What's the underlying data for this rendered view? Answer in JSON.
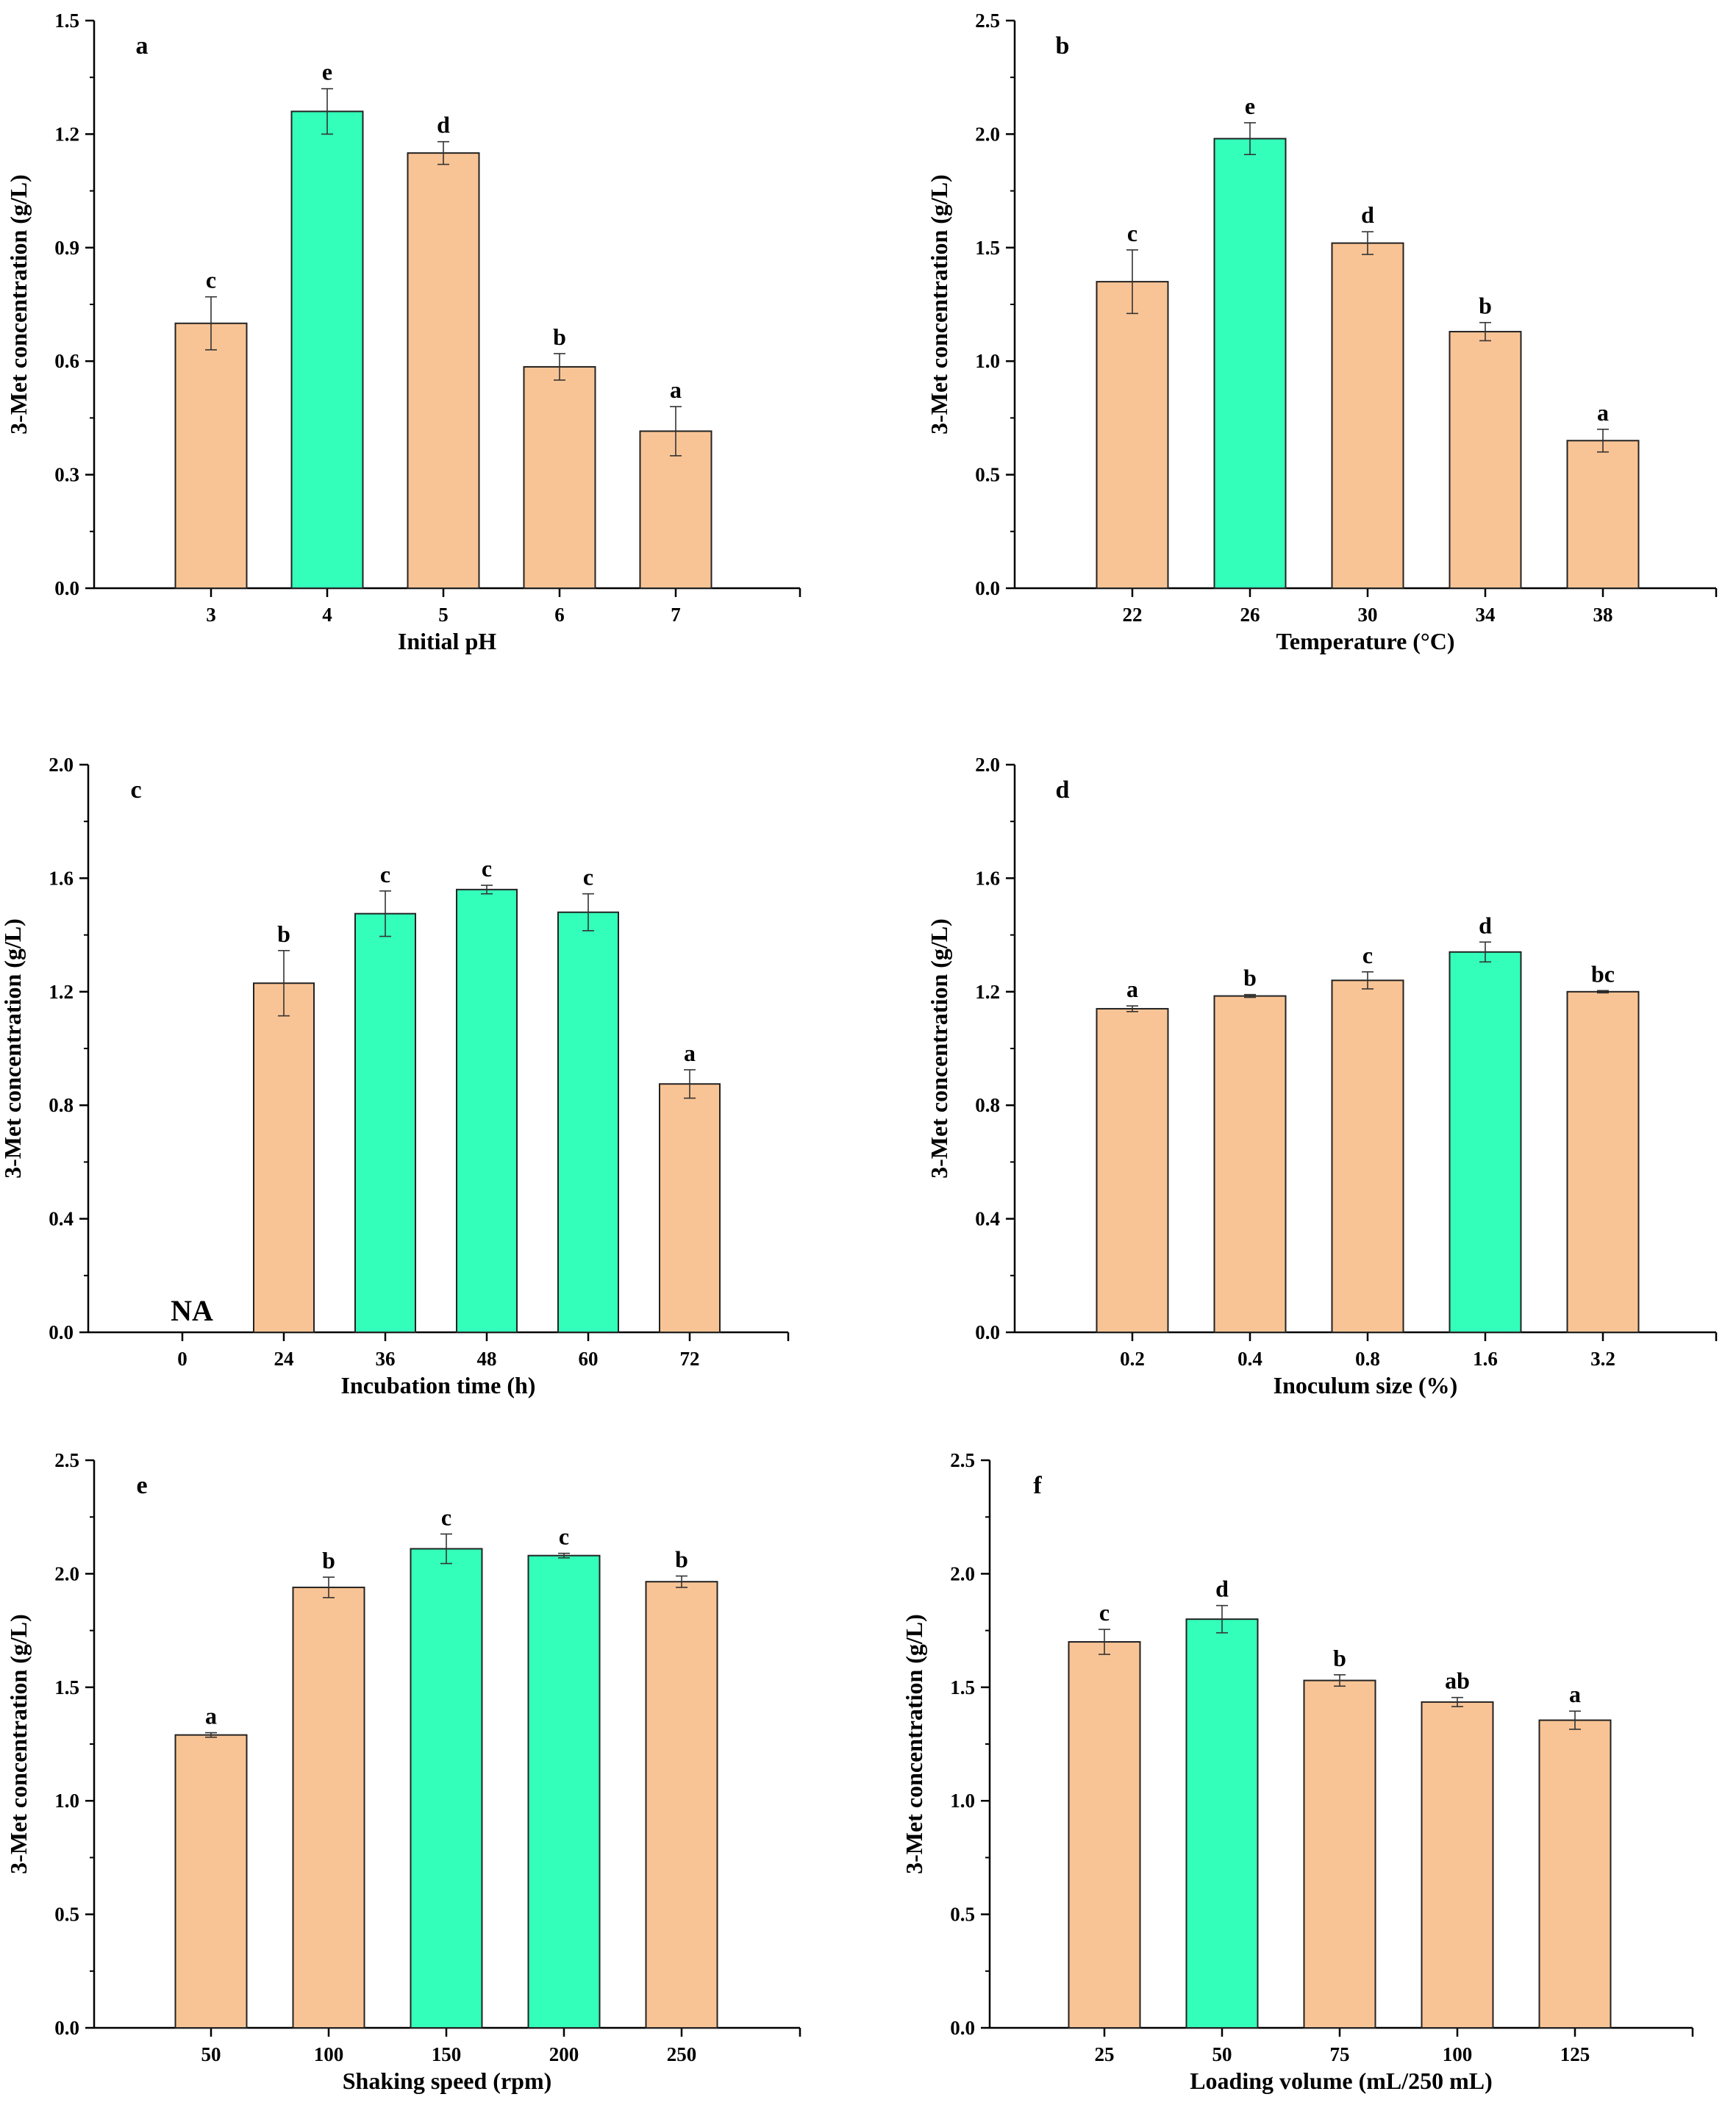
{
  "figure": {
    "colors": {
      "orange": "#f9c495",
      "green": "#33ffbb",
      "axis": "#000000",
      "bar_stroke": "#222222"
    }
  },
  "chart_data": [
    {
      "type": "bar",
      "panel": "a",
      "title": "",
      "ylabel": "3-Met concentration (g/L)",
      "xlabel": "Initial pH",
      "ylim": [
        0,
        1.5
      ],
      "yticks": [
        "0.0",
        "0.3",
        "0.6",
        "0.9",
        "1.2",
        "1.5"
      ],
      "categories": [
        "3",
        "4",
        "5",
        "6",
        "7"
      ],
      "values": [
        0.7,
        1.26,
        1.15,
        0.585,
        0.415
      ],
      "errors": [
        0.07,
        0.06,
        0.03,
        0.035,
        0.065
      ],
      "letters": [
        "c",
        "e",
        "d",
        "b",
        "a"
      ],
      "highlight": [
        false,
        true,
        false,
        false,
        false
      ]
    },
    {
      "type": "bar",
      "panel": "b",
      "title": "",
      "ylabel": "3-Met concentration (g/L)",
      "xlabel": "Temperature (°C)",
      "ylim": [
        0,
        2.5
      ],
      "yticks": [
        "0.0",
        "0.5",
        "1.0",
        "1.5",
        "2.0",
        "2.5"
      ],
      "categories": [
        "22",
        "26",
        "30",
        "34",
        "38"
      ],
      "values": [
        1.35,
        1.98,
        1.52,
        1.13,
        0.65
      ],
      "errors": [
        0.14,
        0.07,
        0.05,
        0.04,
        0.05
      ],
      "letters": [
        "c",
        "e",
        "d",
        "b",
        "a"
      ],
      "highlight": [
        false,
        true,
        false,
        false,
        false
      ]
    },
    {
      "type": "bar",
      "panel": "c",
      "title": "",
      "ylabel": "3-Met concentration (g/L)",
      "xlabel": "Incubation time (h)",
      "ylim": [
        0,
        2.0
      ],
      "yticks": [
        "0.0",
        "0.4",
        "0.8",
        "1.2",
        "1.6",
        "2.0"
      ],
      "categories": [
        "0",
        "24",
        "36",
        "48",
        "60",
        "72"
      ],
      "values": [
        0,
        1.23,
        1.475,
        1.56,
        1.48,
        0.875
      ],
      "errors": [
        0,
        0.115,
        0.08,
        0.015,
        0.065,
        0.05
      ],
      "letters": [
        "NA",
        "b",
        "c",
        "c",
        "c",
        "a"
      ],
      "highlight": [
        false,
        false,
        true,
        true,
        true,
        false
      ]
    },
    {
      "type": "bar",
      "panel": "d",
      "title": "",
      "ylabel": "3-Met concentration (g/L)",
      "xlabel": "Inoculum size (%)",
      "ylim": [
        0,
        2.0
      ],
      "yticks": [
        "0.0",
        "0.4",
        "0.8",
        "1.2",
        "1.6",
        "2.0"
      ],
      "categories": [
        "0.2",
        "0.4",
        "0.8",
        "1.6",
        "3.2"
      ],
      "values": [
        1.14,
        1.185,
        1.24,
        1.34,
        1.2
      ],
      "errors": [
        0.01,
        0.005,
        0.03,
        0.035,
        0.004
      ],
      "letters": [
        "a",
        "b",
        "c",
        "d",
        "bc"
      ],
      "highlight": [
        false,
        false,
        false,
        true,
        false
      ]
    },
    {
      "type": "bar",
      "panel": "e",
      "title": "",
      "ylabel": "3-Met concentration (g/L)",
      "xlabel": "Shaking speed (rpm)",
      "ylim": [
        0,
        2.5
      ],
      "yticks": [
        "0.0",
        "0.5",
        "1.0",
        "1.5",
        "2.0",
        "2.5"
      ],
      "categories": [
        "50",
        "100",
        "150",
        "200",
        "250"
      ],
      "values": [
        1.29,
        1.94,
        2.11,
        2.08,
        1.965
      ],
      "errors": [
        0.01,
        0.045,
        0.065,
        0.01,
        0.025
      ],
      "letters": [
        "a",
        "b",
        "c",
        "c",
        "b"
      ],
      "highlight": [
        false,
        false,
        true,
        true,
        false
      ]
    },
    {
      "type": "bar",
      "panel": "f",
      "title": "",
      "ylabel": "3-Met concentration (g/L)",
      "xlabel": "Loading volume (mL/250 mL)",
      "ylim": [
        0,
        2.5
      ],
      "yticks": [
        "0.0",
        "0.5",
        "1.0",
        "1.5",
        "2.0",
        "2.5"
      ],
      "categories": [
        "25",
        "50",
        "75",
        "100",
        "125"
      ],
      "values": [
        1.7,
        1.8,
        1.53,
        1.435,
        1.355
      ],
      "errors": [
        0.055,
        0.06,
        0.025,
        0.02,
        0.04
      ],
      "letters": [
        "c",
        "d",
        "b",
        "ab",
        "a"
      ],
      "highlight": [
        false,
        true,
        false,
        false,
        false
      ]
    }
  ]
}
